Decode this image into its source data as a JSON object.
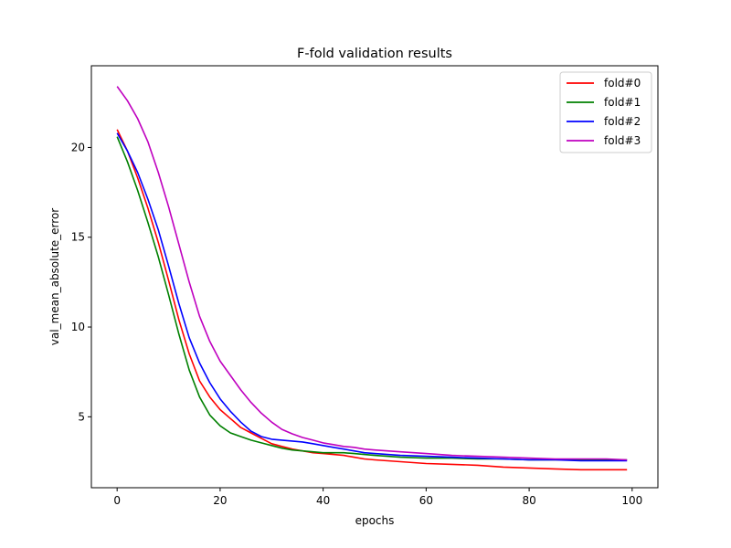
{
  "chart_data": {
    "type": "line",
    "title": "F-fold validation results",
    "xlabel": "epochs",
    "ylabel": "val_mean_absolute_error",
    "xlim": [
      -5,
      105
    ],
    "ylim": [
      1.05,
      24.55
    ],
    "xticks": [
      0,
      20,
      40,
      60,
      80,
      100
    ],
    "yticks": [
      5,
      10,
      15,
      20
    ],
    "grid": false,
    "legend": "top-right",
    "series": [
      {
        "name": "fold#0",
        "color": "#ff0000",
        "x": [
          0,
          2,
          4,
          6,
          8,
          10,
          12,
          14,
          16,
          18,
          20,
          22,
          24,
          26,
          28,
          30,
          32,
          34,
          36,
          38,
          40,
          42,
          44,
          46,
          48,
          50,
          55,
          60,
          65,
          70,
          75,
          80,
          85,
          90,
          95,
          99
        ],
        "y": [
          21.0,
          19.8,
          18.3,
          16.6,
          14.7,
          12.6,
          10.4,
          8.5,
          7.0,
          6.1,
          5.4,
          4.9,
          4.4,
          4.1,
          3.8,
          3.5,
          3.35,
          3.2,
          3.1,
          3.0,
          2.95,
          2.9,
          2.85,
          2.75,
          2.65,
          2.6,
          2.5,
          2.4,
          2.35,
          2.3,
          2.2,
          2.15,
          2.1,
          2.05,
          2.05,
          2.05
        ]
      },
      {
        "name": "fold#1",
        "color": "#008000",
        "x": [
          0,
          2,
          4,
          6,
          8,
          10,
          12,
          14,
          16,
          18,
          20,
          22,
          24,
          26,
          28,
          30,
          32,
          34,
          36,
          38,
          40,
          42,
          44,
          46,
          48,
          50,
          55,
          60,
          65,
          70,
          75,
          80,
          85,
          90,
          95,
          99
        ],
        "y": [
          20.6,
          19.2,
          17.6,
          15.8,
          13.9,
          11.8,
          9.6,
          7.6,
          6.1,
          5.1,
          4.5,
          4.1,
          3.9,
          3.7,
          3.55,
          3.4,
          3.25,
          3.15,
          3.1,
          3.05,
          3.0,
          3.0,
          3.0,
          2.95,
          2.9,
          2.85,
          2.75,
          2.7,
          2.7,
          2.65,
          2.65,
          2.6,
          2.6,
          2.6,
          2.6,
          2.6
        ]
      },
      {
        "name": "fold#2",
        "color": "#0000ff",
        "x": [
          0,
          2,
          4,
          6,
          8,
          10,
          12,
          14,
          16,
          18,
          20,
          22,
          24,
          26,
          28,
          30,
          32,
          34,
          36,
          38,
          40,
          42,
          44,
          46,
          48,
          50,
          55,
          60,
          65,
          70,
          75,
          80,
          85,
          90,
          95,
          99
        ],
        "y": [
          20.8,
          19.8,
          18.6,
          17.1,
          15.4,
          13.4,
          11.3,
          9.4,
          8.0,
          6.9,
          6.0,
          5.3,
          4.7,
          4.2,
          3.9,
          3.75,
          3.7,
          3.65,
          3.6,
          3.5,
          3.4,
          3.3,
          3.2,
          3.1,
          3.0,
          2.95,
          2.85,
          2.8,
          2.75,
          2.7,
          2.65,
          2.6,
          2.6,
          2.55,
          2.55,
          2.55
        ]
      },
      {
        "name": "fold#3",
        "color": "#bf00bf",
        "x": [
          0,
          2,
          4,
          6,
          8,
          10,
          12,
          14,
          16,
          18,
          20,
          22,
          24,
          26,
          28,
          30,
          32,
          34,
          36,
          38,
          40,
          42,
          44,
          46,
          48,
          50,
          55,
          60,
          65,
          70,
          75,
          80,
          85,
          90,
          95,
          99
        ],
        "y": [
          23.4,
          22.6,
          21.6,
          20.3,
          18.6,
          16.7,
          14.6,
          12.5,
          10.6,
          9.2,
          8.1,
          7.3,
          6.5,
          5.8,
          5.2,
          4.7,
          4.3,
          4.05,
          3.85,
          3.7,
          3.55,
          3.45,
          3.35,
          3.3,
          3.2,
          3.15,
          3.05,
          2.95,
          2.85,
          2.8,
          2.75,
          2.7,
          2.65,
          2.65,
          2.65,
          2.6
        ]
      }
    ]
  }
}
